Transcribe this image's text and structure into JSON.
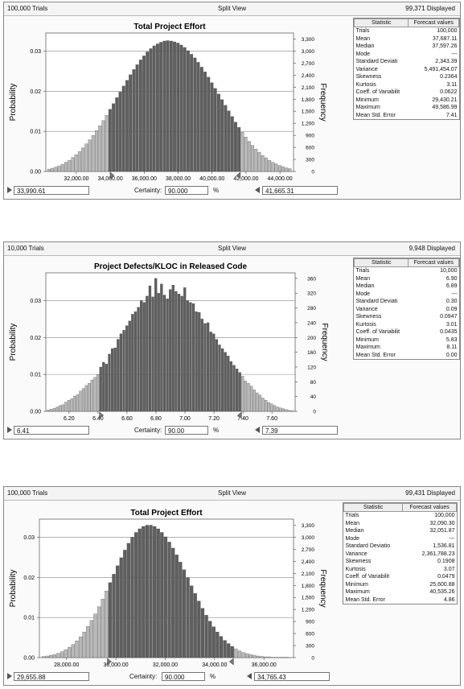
{
  "panels": [
    {
      "trials": "100,000 Trials",
      "view": "Split View",
      "displayed": "99,371 Displayed",
      "certainty_label": "Certainty:",
      "certainty": "90.000",
      "pct": "%",
      "lower": "33,990.61",
      "upper": "41,665.31",
      "stats_header": [
        "Statistic",
        "Forecast values"
      ],
      "stats": [
        [
          "Trials",
          "100,000"
        ],
        [
          "Mean",
          "37,687.11"
        ],
        [
          "Median",
          "37,597.26"
        ],
        [
          "Mode",
          "---"
        ],
        [
          "Standard Deviati",
          "2,343.39"
        ],
        [
          "Variance",
          "5,491,454.07"
        ],
        [
          "Skewness",
          "0.2364"
        ],
        [
          "Kurtosis",
          "3.11"
        ],
        [
          "Coeff. of Variabilit",
          "0.0622"
        ],
        [
          "Minimum",
          "29,430.21"
        ],
        [
          "Maximum",
          "49,586.99"
        ],
        [
          "Mean Std. Error",
          "7.41"
        ]
      ]
    },
    {
      "trials": "10,000 Trials",
      "view": "Split View",
      "displayed": "9,948 Displayed",
      "certainty_label": "Certainty:",
      "certainty": "90.00",
      "pct": "%",
      "lower": "6.41",
      "upper": "7.39",
      "stats_header": [
        "Statistic",
        "Forecast values"
      ],
      "stats": [
        [
          "Trials",
          "10,000"
        ],
        [
          "Mean",
          "6.90"
        ],
        [
          "Median",
          "6.89"
        ],
        [
          "Mode",
          "---"
        ],
        [
          "Standard Deviati",
          "0.30"
        ],
        [
          "Variance",
          "0.09"
        ],
        [
          "Skewness",
          "0.0947"
        ],
        [
          "Kurtosis",
          "3.01"
        ],
        [
          "Coeff. of Variabilit",
          "0.0435"
        ],
        [
          "Minimum",
          "5.83"
        ],
        [
          "Maximum",
          "8.11"
        ],
        [
          "Mean Std. Error",
          "0.00"
        ]
      ]
    },
    {
      "trials": "100,000 Trials",
      "view": "Split View",
      "displayed": "99,431 Displayed",
      "certainty_label": "Certainty:",
      "certainty": "90.000",
      "pct": "%",
      "lower": "29,655.88",
      "upper": "34,765.43",
      "stats_header": [
        "Statistic",
        "Forecast values"
      ],
      "stats": [
        [
          "Trials",
          "100,000"
        ],
        [
          "Mean",
          "32,090.30"
        ],
        [
          "Median",
          "32,051.87"
        ],
        [
          "Mode",
          "---"
        ],
        [
          "Standard Deviatio",
          "1,536.81"
        ],
        [
          "Variance",
          "2,361,788.23"
        ],
        [
          "Skewness",
          "0.1908"
        ],
        [
          "Kurtosis",
          "3.07"
        ],
        [
          "Coeff. of Variabilit",
          "0.0479"
        ],
        [
          "Minimum",
          "25,600.88"
        ],
        [
          "Maximum",
          "40,535.26"
        ],
        [
          "Mean Std. Error",
          "4.86"
        ]
      ]
    }
  ],
  "colors": {
    "inside": "#5f5f5f",
    "outside": "#b8b8b8",
    "grid": "#888888"
  },
  "chart_data": [
    {
      "type": "bar",
      "title": "Total Project Effort",
      "ylabel": "Probability",
      "y2label": "Frequency",
      "x_ticks": [
        "32,000.00",
        "34,000.00",
        "36,000.00",
        "38,000.00",
        "40,000.00",
        "42,000.00",
        "44,000.00"
      ],
      "x_tick_values": [
        32000,
        34000,
        36000,
        38000,
        40000,
        42000,
        44000
      ],
      "xlim": [
        30200,
        44800
      ],
      "y_ticks": [
        "0.00",
        "0.01",
        "0.02",
        "0.03"
      ],
      "y_tick_values": [
        0,
        0.01,
        0.02,
        0.03
      ],
      "ylim": [
        0,
        0.0345
      ],
      "y2_ticks": [
        "0",
        "300",
        "600",
        "900",
        "1,200",
        "1,500",
        "1,800",
        "2,100",
        "2,400",
        "2,700",
        "3,000",
        "3,300"
      ],
      "y2_tick_values": [
        0,
        300,
        600,
        900,
        1200,
        1500,
        1800,
        2100,
        2400,
        2700,
        3000,
        3300
      ],
      "y2lim": [
        0,
        3450
      ],
      "lower": 33990.61,
      "upper": 41665.31,
      "bins": {
        "x": [
          30400,
          30600,
          30800,
          31000,
          31200,
          31400,
          31600,
          31800,
          32000,
          32200,
          32400,
          32600,
          32800,
          33000,
          33200,
          33400,
          33600,
          33800,
          34000,
          34200,
          34400,
          34600,
          34800,
          35000,
          35200,
          35400,
          35600,
          35800,
          36000,
          36200,
          36400,
          36600,
          36800,
          37000,
          37200,
          37400,
          37600,
          37800,
          38000,
          38200,
          38400,
          38600,
          38800,
          39000,
          39200,
          39400,
          39600,
          39800,
          40000,
          40200,
          40400,
          40600,
          40800,
          41000,
          41200,
          41400,
          41600,
          41800,
          42000,
          42200,
          42400,
          42600,
          42800,
          43000,
          43200,
          43400,
          43600,
          43800,
          44000,
          44200,
          44400,
          44600
        ],
        "values": [
          0.0006,
          0.0008,
          0.0011,
          0.0014,
          0.0018,
          0.0023,
          0.0028,
          0.0035,
          0.0042,
          0.005,
          0.0059,
          0.0069,
          0.0079,
          0.009,
          0.0102,
          0.0114,
          0.0127,
          0.014,
          0.0155,
          0.0169,
          0.0184,
          0.0198,
          0.0213,
          0.0227,
          0.0241,
          0.0254,
          0.0266,
          0.0278,
          0.0288,
          0.0298,
          0.0306,
          0.0313,
          0.0318,
          0.0322,
          0.0325,
          0.0326,
          0.0325,
          0.0323,
          0.032,
          0.0315,
          0.0309,
          0.0301,
          0.0292,
          0.0283,
          0.0272,
          0.026,
          0.0248,
          0.0235,
          0.0221,
          0.0207,
          0.0193,
          0.0179,
          0.0165,
          0.0151,
          0.0137,
          0.0123,
          0.011,
          0.0098,
          0.0086,
          0.0075,
          0.0065,
          0.0056,
          0.0048,
          0.004,
          0.0034,
          0.0028,
          0.0023,
          0.0019,
          0.0015,
          0.0012,
          0.0009,
          0.0007
        ]
      }
    },
    {
      "type": "bar",
      "title": "Project Defects/KLOC in Released Code",
      "ylabel": "Probability",
      "y2label": "Frequency",
      "x_ticks": [
        "6.20",
        "6.40",
        "6.60",
        "6.80",
        "7.00",
        "7.20",
        "7.40",
        "7.60"
      ],
      "x_tick_values": [
        6.2,
        6.4,
        6.6,
        6.8,
        7.0,
        7.2,
        7.4,
        7.6
      ],
      "xlim": [
        6.04,
        7.76
      ],
      "y_ticks": [
        "0.00",
        "0.01",
        "0.02",
        "0.03"
      ],
      "y_tick_values": [
        0,
        0.01,
        0.02,
        0.03
      ],
      "ylim": [
        0,
        0.0375
      ],
      "y2_ticks": [
        "0",
        "40",
        "80",
        "120",
        "160",
        "200",
        "240",
        "280",
        "320",
        "360"
      ],
      "y2_tick_values": [
        0,
        40,
        80,
        120,
        160,
        200,
        240,
        280,
        320,
        360
      ],
      "y2lim": [
        0,
        375
      ],
      "lower": 6.41,
      "upper": 7.39,
      "bins": {
        "x": [
          6.06,
          6.08,
          6.1,
          6.12,
          6.14,
          6.16,
          6.18,
          6.2,
          6.22,
          6.24,
          6.26,
          6.28,
          6.3,
          6.32,
          6.34,
          6.36,
          6.38,
          6.4,
          6.42,
          6.44,
          6.46,
          6.48,
          6.5,
          6.52,
          6.54,
          6.56,
          6.58,
          6.6,
          6.62,
          6.64,
          6.66,
          6.68,
          6.7,
          6.72,
          6.74,
          6.76,
          6.78,
          6.8,
          6.82,
          6.84,
          6.86,
          6.88,
          6.9,
          6.92,
          6.94,
          6.96,
          6.98,
          7.0,
          7.02,
          7.04,
          7.06,
          7.08,
          7.1,
          7.12,
          7.14,
          7.16,
          7.18,
          7.2,
          7.22,
          7.24,
          7.26,
          7.28,
          7.3,
          7.32,
          7.34,
          7.36,
          7.38,
          7.4,
          7.42,
          7.44,
          7.46,
          7.48,
          7.5,
          7.52,
          7.54,
          7.56,
          7.58,
          7.6,
          7.62,
          7.64,
          7.66,
          7.68,
          7.7,
          7.72,
          7.74
        ],
        "values": [
          0.0004,
          0.0006,
          0.0008,
          0.0012,
          0.0016,
          0.0018,
          0.0025,
          0.003,
          0.0034,
          0.0041,
          0.0045,
          0.0055,
          0.0062,
          0.007,
          0.0076,
          0.0085,
          0.0092,
          0.01,
          0.012,
          0.0133,
          0.0128,
          0.0155,
          0.017,
          0.0172,
          0.0195,
          0.021,
          0.022,
          0.0232,
          0.0245,
          0.0263,
          0.027,
          0.0282,
          0.03,
          0.0295,
          0.0312,
          0.034,
          0.031,
          0.036,
          0.032,
          0.0345,
          0.0315,
          0.0305,
          0.033,
          0.0342,
          0.0325,
          0.0318,
          0.0312,
          0.0335,
          0.03,
          0.0295,
          0.0292,
          0.027,
          0.0268,
          0.025,
          0.0238,
          0.024,
          0.0215,
          0.021,
          0.0195,
          0.018,
          0.017,
          0.016,
          0.015,
          0.0135,
          0.0125,
          0.0115,
          0.0105,
          0.0095,
          0.0082,
          0.0076,
          0.0068,
          0.0058,
          0.005,
          0.0044,
          0.0036,
          0.003,
          0.0024,
          0.002,
          0.0016,
          0.0012,
          0.0009,
          0.0007,
          0.0005,
          0.0003,
          0.0002
        ]
      }
    },
    {
      "type": "bar",
      "title": "Total Project Effort",
      "ylabel": "Probability",
      "y2label": "Frequency",
      "x_ticks": [
        "28,000.00",
        "30,000.00",
        "32,000.00",
        "34,000.00",
        "36,000.00"
      ],
      "x_tick_values": [
        28000,
        30000,
        32000,
        34000,
        36000
      ],
      "xlim": [
        26900,
        37200
      ],
      "y_ticks": [
        "0.00",
        "0.01",
        "0.02",
        "0.03"
      ],
      "y_tick_values": [
        0,
        0.01,
        0.02,
        0.03
      ],
      "ylim": [
        0,
        0.0345
      ],
      "y2_ticks": [
        "0",
        "300",
        "600",
        "900",
        "1,200",
        "1,500",
        "1,800",
        "2,100",
        "2,400",
        "2,700",
        "3,000",
        "3,300"
      ],
      "y2_tick_values": [
        0,
        300,
        600,
        900,
        1200,
        1500,
        1800,
        2100,
        2400,
        2700,
        3000,
        3300
      ],
      "y2lim": [
        0,
        3450
      ],
      "lower": 29655.88,
      "upper": 34765.43,
      "bins": {
        "x": [
          27075,
          27225,
          27375,
          27525,
          27675,
          27825,
          27975,
          28125,
          28275,
          28425,
          28575,
          28725,
          28875,
          29025,
          29175,
          29325,
          29475,
          29625,
          29775,
          29925,
          30075,
          30225,
          30375,
          30525,
          30675,
          30825,
          30975,
          31125,
          31275,
          31425,
          31575,
          31725,
          31875,
          32025,
          32175,
          32325,
          32475,
          32625,
          32775,
          32925,
          33075,
          33225,
          33375,
          33525,
          33675,
          33825,
          33975,
          34125,
          34275,
          34425,
          34575,
          34725,
          34875,
          35025,
          35175,
          35325,
          35475,
          35625,
          35775,
          35925,
          36075,
          36225,
          36375,
          36525,
          36675,
          36825,
          36975
        ],
        "values": [
          0.0003,
          0.0004,
          0.0006,
          0.0008,
          0.0011,
          0.0015,
          0.002,
          0.0026,
          0.0033,
          0.0042,
          0.0052,
          0.0064,
          0.0078,
          0.0093,
          0.0109,
          0.0127,
          0.0146,
          0.0166,
          0.0187,
          0.0208,
          0.0229,
          0.0249,
          0.0268,
          0.0285,
          0.03,
          0.0312,
          0.0321,
          0.0327,
          0.033,
          0.033,
          0.0327,
          0.0321,
          0.0312,
          0.0301,
          0.0288,
          0.0273,
          0.0256,
          0.0238,
          0.0219,
          0.0199,
          0.0179,
          0.016,
          0.0141,
          0.0123,
          0.0106,
          0.0091,
          0.0077,
          0.0064,
          0.0053,
          0.0043,
          0.0035,
          0.0028,
          0.0022,
          0.0017,
          0.0013,
          0.001,
          0.0008,
          0.0006,
          0.0004,
          0.0003,
          0.0002,
          0.0002,
          0.0001,
          0.0001,
          0.0001,
          0.0001,
          0.0001
        ]
      }
    }
  ]
}
